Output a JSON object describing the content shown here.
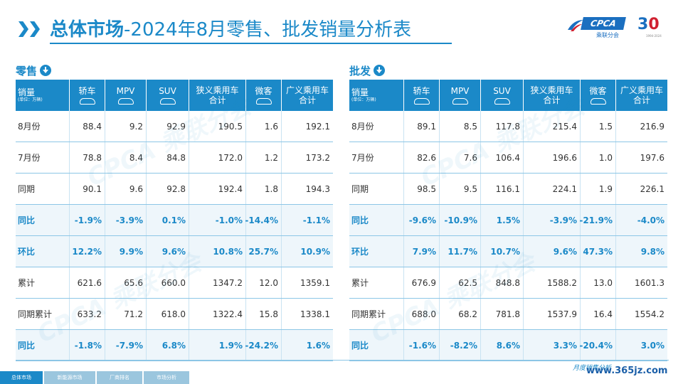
{
  "header": {
    "title_bold": "总体市场",
    "title_rest": "-2024年8月零售、批发销量分析表"
  },
  "logo": {
    "brand": "CPCA",
    "cn": "乘联分会",
    "anniversary_3": "3",
    "anniversary_0": "0",
    "years": "1994-2024"
  },
  "columns": {
    "unit_label": "销量",
    "unit_sub": "(单位：万辆)",
    "headers": [
      {
        "l1": "轿车",
        "car": true
      },
      {
        "l1": "MPV",
        "car": true
      },
      {
        "l1": "SUV",
        "car": true
      },
      {
        "l1": "狭义乘用车",
        "l2": "合计"
      },
      {
        "l1": "微客",
        "car": true
      },
      {
        "l1": "广义乘用车",
        "l2": "合计"
      }
    ]
  },
  "retail": {
    "label": "零售",
    "rows": [
      {
        "label": "8月份",
        "v": [
          "88.4",
          "9.2",
          "92.9",
          "190.5",
          "1.6",
          "192.1"
        ],
        "hl": false
      },
      {
        "label": "7月份",
        "v": [
          "78.8",
          "8.4",
          "84.8",
          "172.0",
          "1.2",
          "173.2"
        ],
        "hl": false
      },
      {
        "label": "同期",
        "v": [
          "90.1",
          "9.6",
          "92.8",
          "192.4",
          "1.8",
          "194.3"
        ],
        "hl": false
      },
      {
        "label": "同比",
        "v": [
          "-1.9%",
          "-3.9%",
          "0.1%",
          "-1.0%",
          "-14.4%",
          "-1.1%"
        ],
        "hl": true
      },
      {
        "label": "环比",
        "v": [
          "12.2%",
          "9.9%",
          "9.6%",
          "10.8%",
          "25.7%",
          "10.9%"
        ],
        "hl": true
      },
      {
        "label": "累计",
        "v": [
          "621.6",
          "65.6",
          "660.0",
          "1347.2",
          "12.0",
          "1359.1"
        ],
        "hl": false
      },
      {
        "label": "同期累计",
        "v": [
          "633.2",
          "71.2",
          "618.0",
          "1322.4",
          "15.8",
          "1338.1"
        ],
        "hl": false
      },
      {
        "label": "同比",
        "v": [
          "-1.8%",
          "-7.9%",
          "6.8%",
          "1.9%",
          "-24.2%",
          "1.6%"
        ],
        "hl": true
      }
    ]
  },
  "wholesale": {
    "label": "批发",
    "rows": [
      {
        "label": "8月份",
        "v": [
          "89.1",
          "8.5",
          "117.8",
          "215.4",
          "1.5",
          "216.9"
        ],
        "hl": false
      },
      {
        "label": "7月份",
        "v": [
          "82.6",
          "7.6",
          "106.4",
          "196.6",
          "1.0",
          "197.6"
        ],
        "hl": false
      },
      {
        "label": "同期",
        "v": [
          "98.5",
          "9.5",
          "116.1",
          "224.1",
          "1.9",
          "226.1"
        ],
        "hl": false
      },
      {
        "label": "同比",
        "v": [
          "-9.6%",
          "-10.9%",
          "1.5%",
          "-3.9%",
          "-21.9%",
          "-4.0%"
        ],
        "hl": true
      },
      {
        "label": "环比",
        "v": [
          "7.9%",
          "11.7%",
          "10.7%",
          "9.6%",
          "47.3%",
          "9.8%"
        ],
        "hl": true
      },
      {
        "label": "累计",
        "v": [
          "676.9",
          "62.5",
          "848.8",
          "1588.2",
          "13.0",
          "1601.3"
        ],
        "hl": false
      },
      {
        "label": "同期累计",
        "v": [
          "688.0",
          "68.2",
          "781.8",
          "1537.9",
          "16.4",
          "1554.2"
        ],
        "hl": false
      },
      {
        "label": "同比",
        "v": [
          "-1.6%",
          "-8.2%",
          "8.6%",
          "3.3%",
          "-20.4%",
          "3.0%"
        ],
        "hl": true
      }
    ]
  },
  "tabs": [
    "总体市场",
    "新能源市场",
    "厂商排名",
    "市场分析"
  ],
  "footer": {
    "slogan": "月度销售分析",
    "url": "www.365jz.com"
  },
  "colors": {
    "accent": "#1b89c8",
    "highlight_row": "#eef6fb"
  }
}
